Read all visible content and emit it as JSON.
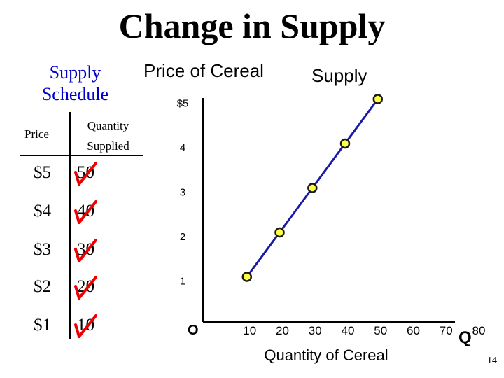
{
  "slide": {
    "title": "Change in Supply",
    "page_number": "14"
  },
  "schedule": {
    "title": "Supply Schedule",
    "price_header": "Price",
    "quantity_header": "Quantity Supplied",
    "rows": [
      {
        "price": "$5",
        "quantity": "50"
      },
      {
        "price": "$4",
        "quantity": "40"
      },
      {
        "price": "$3",
        "quantity": "30"
      },
      {
        "price": "$2",
        "quantity": "20"
      },
      {
        "price": "$1",
        "quantity": "10"
      }
    ],
    "strike_color": "#ee0000"
  },
  "chart_data": {
    "type": "line",
    "title": "Price of Cereal",
    "xlabel": "Quantity of Cereal",
    "ylabel": "",
    "x_axis_end_label": "Q",
    "origin_label": "O",
    "series": [
      {
        "name": "Supply",
        "x": [
          10,
          20,
          30,
          40,
          50
        ],
        "y": [
          1,
          2,
          3,
          4,
          5
        ]
      }
    ],
    "x_ticks": [
      "10",
      "20",
      "30",
      "40",
      "50",
      "60",
      "70",
      "80"
    ],
    "y_ticks": [
      "1",
      "2",
      "3",
      "4",
      "$5"
    ],
    "xlim": [
      0,
      80
    ],
    "ylim": [
      0,
      5
    ],
    "grid": false,
    "line_color": "#1a1aa6",
    "point_color": "#ffff44",
    "point_edge_color": "#1a1a1a"
  }
}
